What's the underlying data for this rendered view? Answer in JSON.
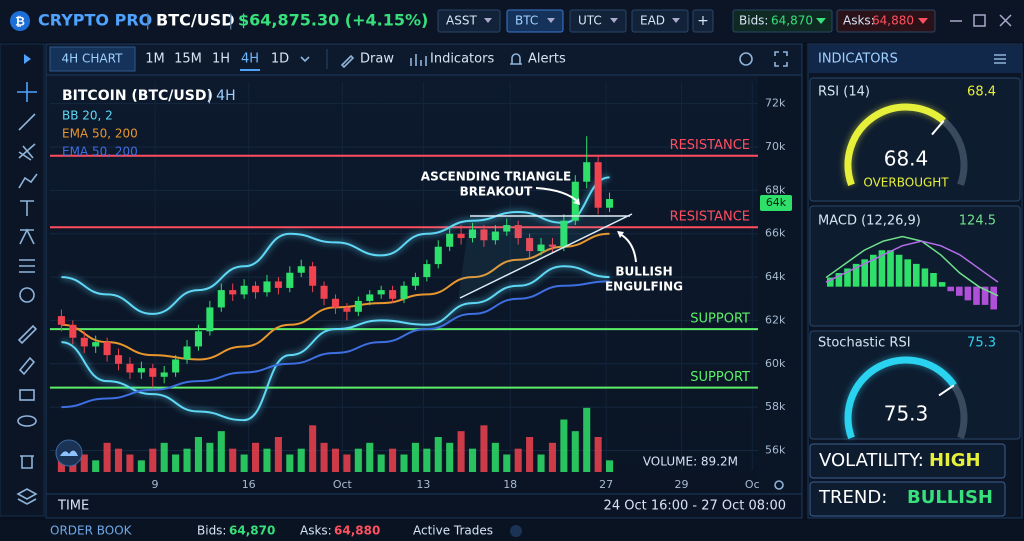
{
  "header": {
    "logo": "CRYPTO PRO",
    "pair": "BTC/USD",
    "price": "$64,875.30 (+4.15%)",
    "selectors": [
      "ASST",
      "BTC",
      "UTC",
      "EAD"
    ],
    "add": "+",
    "bids_label": "Bids:",
    "bids": "64,870",
    "asks_label": "Asks:",
    "asks": "64,880"
  },
  "toolbar": {
    "tab": "4H CHART",
    "timeframes": [
      "1M",
      "15M",
      "1H",
      "4H",
      "1D"
    ],
    "draw": "Draw",
    "indicators": "Indicators",
    "alerts": "Alerts"
  },
  "chart": {
    "type": "candlestick",
    "title": "BITCOIN (BTC/USD)",
    "interval": "| 4H",
    "legend": [
      "BB 20, 2",
      "EMA 50, 200",
      "EMA 50, 200"
    ],
    "open": [
      62.2,
      61.8,
      61.2,
      60.8,
      61.0,
      60.4,
      60.0,
      59.6,
      59.8,
      59.4,
      59.6,
      60.2,
      60.8,
      61.5,
      62.6,
      63.4,
      63.2,
      63.6,
      63.3,
      63.8,
      63.5,
      64.2,
      64.5,
      63.6,
      63.0,
      62.6,
      62.4,
      62.9,
      63.2,
      63.4,
      63.0,
      63.6,
      64.0,
      64.6,
      65.4,
      66.0,
      65.8,
      66.2,
      65.7,
      66.1,
      66.4,
      65.8,
      65.2,
      65.5,
      65.4,
      66.6,
      68.4,
      69.3,
      67.2
    ],
    "high": [
      62.5,
      62.0,
      61.5,
      61.3,
      61.2,
      60.7,
      60.3,
      60.1,
      60.0,
      59.9,
      60.4,
      61.1,
      61.8,
      62.9,
      63.7,
      63.7,
      63.9,
      63.8,
      64.1,
      64.0,
      64.5,
      64.8,
      64.7,
      63.8,
      63.2,
      62.8,
      63.1,
      63.4,
      63.6,
      63.6,
      63.8,
      64.2,
      64.8,
      65.7,
      66.3,
      66.4,
      66.5,
      66.4,
      66.4,
      66.7,
      66.6,
      66.0,
      65.8,
      65.8,
      66.9,
      68.7,
      70.5,
      69.6,
      67.9
    ],
    "low": [
      61.5,
      60.9,
      60.5,
      60.5,
      60.1,
      59.7,
      59.3,
      59.3,
      58.9,
      59.1,
      59.4,
      60.0,
      60.6,
      61.3,
      62.4,
      62.9,
      63.0,
      63.0,
      63.1,
      63.2,
      63.3,
      64.0,
      63.3,
      62.7,
      62.3,
      62.0,
      62.2,
      62.7,
      63.0,
      62.8,
      62.8,
      63.4,
      63.8,
      64.4,
      65.2,
      65.5,
      65.6,
      65.4,
      65.5,
      65.9,
      65.5,
      64.9,
      65.0,
      65.1,
      65.2,
      66.4,
      68.1,
      66.9,
      67.0
    ],
    "close": [
      61.8,
      61.2,
      60.8,
      61.0,
      60.4,
      60.0,
      59.6,
      59.8,
      59.4,
      59.6,
      60.2,
      60.8,
      61.5,
      62.6,
      63.4,
      63.2,
      63.6,
      63.3,
      63.8,
      63.5,
      64.2,
      64.5,
      63.6,
      63.0,
      62.6,
      62.4,
      62.9,
      63.2,
      63.4,
      63.0,
      63.6,
      64.0,
      64.6,
      65.4,
      66.0,
      65.8,
      66.2,
      65.7,
      66.1,
      66.4,
      65.8,
      65.2,
      65.5,
      65.4,
      66.6,
      68.4,
      69.3,
      67.2,
      67.6
    ],
    "up_color": "#2ee06a",
    "down_color": "#f0424f",
    "overlays": [
      {
        "color": "#5fd8f5",
        "x": [
          1,
          5,
          9,
          13,
          17,
          21,
          25,
          29,
          33,
          37,
          41,
          45,
          49
        ],
        "values": [
          64.0,
          63.2,
          62.3,
          63.4,
          64.5,
          66.0,
          65.6,
          65.0,
          66.0,
          66.6,
          67.0,
          66.5,
          68.6
        ]
      },
      {
        "color": "#5fd8f5",
        "x": [
          1,
          5,
          9,
          13,
          17,
          21,
          25,
          29,
          33,
          37,
          41,
          45,
          49
        ],
        "values": [
          61.0,
          59.2,
          58.6,
          57.8,
          57.4,
          60.4,
          61.6,
          62.0,
          61.8,
          62.8,
          63.6,
          64.5,
          64.0
        ]
      },
      {
        "color": "#e8962e",
        "x": [
          1,
          5,
          9,
          13,
          17,
          21,
          25,
          29,
          33,
          37,
          41,
          45,
          49
        ],
        "values": [
          61.8,
          61.0,
          60.4,
          60.2,
          60.8,
          61.8,
          62.6,
          62.8,
          63.2,
          64.0,
          64.8,
          65.4,
          66.0
        ]
      },
      {
        "color": "#3d6fe0",
        "x": [
          1,
          5,
          9,
          13,
          17,
          21,
          25,
          29,
          33,
          37,
          41,
          45,
          49
        ],
        "values": [
          58.0,
          58.4,
          58.8,
          59.2,
          59.6,
          60.0,
          60.5,
          61.0,
          61.6,
          62.3,
          63.0,
          63.6,
          63.8
        ]
      }
    ],
    "levels": [
      {
        "label": "RESISTANCE",
        "value": 69.6,
        "color": "#ff4d5e"
      },
      {
        "label": "RESISTANCE",
        "value": 66.3,
        "color": "#ff4d5e"
      },
      {
        "label": "SUPPORT",
        "value": 61.6,
        "color": "#5cf06a"
      },
      {
        "label": "SUPPORT",
        "value": 58.9,
        "color": "#5cf06a"
      }
    ],
    "annotations": [
      [
        "ASCENDING TRIANGLE",
        "BREAKOUT"
      ],
      [
        "BULLISH",
        "ENGULFING"
      ]
    ],
    "price_tag": "64k",
    "ylim": [
      55.1,
      73
    ],
    "yticks": [
      {
        "value": 56,
        "label": "56k"
      },
      {
        "value": 58,
        "label": "58k"
      },
      {
        "value": 60,
        "label": "60k"
      },
      {
        "value": 62,
        "label": "62k"
      },
      {
        "value": 64,
        "label": "64k"
      },
      {
        "value": 66,
        "label": "66k"
      },
      {
        "value": 68,
        "label": "68k"
      },
      {
        "value": 70,
        "label": "70k"
      },
      {
        "value": 72,
        "label": "72k"
      }
    ],
    "xlim": [
      0,
      62
    ],
    "xticks": [
      {
        "value": 9.2,
        "label": "9"
      },
      {
        "value": 17.4,
        "label": "16"
      },
      {
        "value": 25.6,
        "label": "Oct"
      },
      {
        "value": 32.7,
        "label": "13"
      },
      {
        "value": 40.3,
        "label": "18"
      },
      {
        "value": 48.7,
        "label": "27"
      },
      {
        "value": 55.3,
        "label": "29"
      },
      {
        "value": 61.5,
        "label": "Oc"
      }
    ],
    "volume_label": "VOLUME: 89.2M",
    "volume": [
      3,
      4,
      3,
      2,
      5,
      4,
      3,
      2,
      4,
      5,
      3,
      4,
      6,
      5,
      7,
      4,
      3,
      5,
      4,
      6,
      3,
      4,
      8,
      5,
      4,
      3,
      4,
      5,
      3,
      4,
      3,
      5,
      4,
      6,
      5,
      7,
      4,
      8,
      5,
      3,
      4,
      6,
      3,
      5,
      9,
      7,
      11,
      6,
      2
    ],
    "volume_lim": [
      0,
      12
    ],
    "time_label": "TIME",
    "range": "24 Oct 16:00 - 27 Oct 08:00"
  },
  "indicators": {
    "title": "INDICATORS",
    "rsi": {
      "name": "RSI (14)",
      "value": 68.4,
      "status": "OVERBOUGHT",
      "lim": [
        0,
        100
      ],
      "color": "#e6f03a"
    },
    "macd": {
      "name": "MACD (12,26,9)",
      "value": 124.5,
      "lim": [
        -6,
        12
      ],
      "histogram": [
        2,
        3,
        4,
        5,
        6,
        7,
        8,
        8,
        7,
        6,
        5,
        4,
        3,
        1,
        -1,
        -2,
        -3,
        -4,
        -4,
        -5
      ],
      "macd_line": [
        2,
        5,
        8,
        10,
        11,
        10,
        7,
        3,
        0,
        -2
      ],
      "signal_line": [
        1,
        3,
        5,
        7,
        9,
        10,
        9,
        7,
        4,
        1
      ],
      "up_color": "#2ee06a",
      "down_color": "#b04fd8",
      "line_color": "#6fe08a",
      "signal_color": "#b36ee8"
    },
    "stoch": {
      "name": "Stochastic RSI",
      "value": 75.3,
      "lim": [
        0,
        100
      ],
      "color": "#2ad4f0"
    },
    "volatility": {
      "label": "VOLATILITY:",
      "value": "HIGH"
    },
    "trend": {
      "label": "TREND:",
      "value": "BULLISH"
    }
  },
  "footer": {
    "order_book": "ORDER BOOK",
    "active_trades": "Active Trades"
  }
}
